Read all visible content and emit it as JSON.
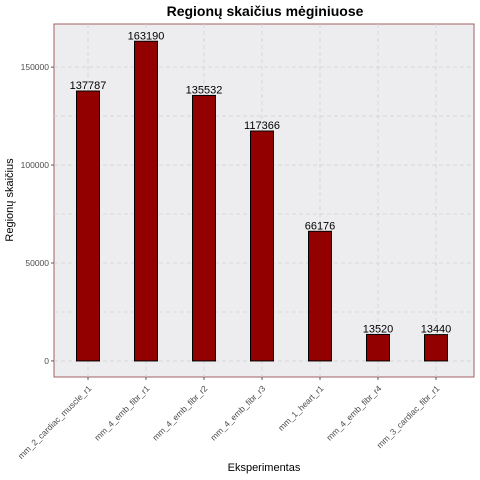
{
  "chart_data": {
    "type": "bar",
    "title": "Regionų skaičius mėginiuose",
    "xlabel": "Eksperimentas",
    "ylabel": "Regionų skaičius",
    "categories": [
      "mm_2_cardiac_muscle_r1",
      "mm_4_emb_fibr_r1",
      "mm_4_emb_fibr_r2",
      "mm_4_emb_fibr_r3",
      "mm_1_heart_r1",
      "mm_4_emb_fibr_r4",
      "mm_3_cardiac_fibr_r1"
    ],
    "values": [
      137787,
      163190,
      135532,
      117366,
      66176,
      13520,
      13440
    ],
    "data_labels": [
      "137787",
      "163190",
      "135532",
      "117366",
      "66176",
      "13520",
      "13440"
    ],
    "yticks": [
      0,
      50000,
      100000,
      150000
    ],
    "ytick_labels": [
      "0",
      "50000",
      "100000",
      "150000"
    ],
    "ylim": [
      -8200,
      172000
    ],
    "grid": true,
    "legend": "none",
    "colors": {
      "bar_fill": "#930000",
      "bar_stroke": "#000000",
      "panel_background": "#ededf0",
      "panel_border": "#a06060",
      "grid": "#d2d2d6"
    }
  }
}
